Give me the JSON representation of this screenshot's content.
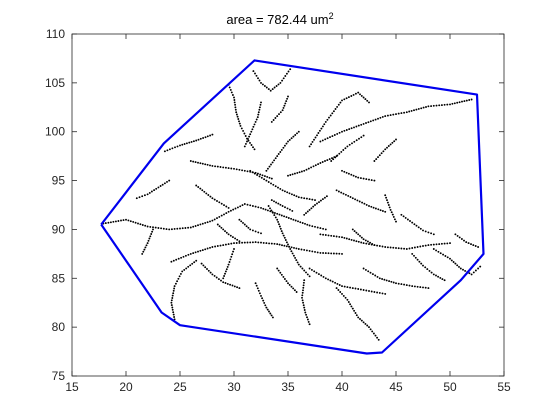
{
  "chart_data": {
    "type": "scatter",
    "title": "area = 782.44 um",
    "title_superscript": "2",
    "xlabel": "",
    "ylabel": "",
    "xlim": [
      15,
      55
    ],
    "ylim": [
      75,
      110
    ],
    "xticks": [
      15,
      20,
      25,
      30,
      35,
      40,
      45,
      50,
      55
    ],
    "yticks": [
      75,
      80,
      85,
      90,
      95,
      100,
      105,
      110
    ],
    "grid": false,
    "legend": "none",
    "colors": {
      "hull": "#0000ee",
      "points": "#000000",
      "axes": "#262626"
    },
    "series": [
      {
        "type": "line",
        "closed": true,
        "points": [
          [
            17.7,
            90.5
          ],
          [
            23.5,
            98.8
          ],
          [
            31.9,
            107.3
          ],
          [
            52.5,
            103.8
          ],
          [
            53.1,
            87.5
          ],
          [
            51.0,
            84.8
          ],
          [
            43.7,
            77.4
          ],
          [
            42.3,
            77.3
          ],
          [
            25.0,
            80.2
          ],
          [
            23.3,
            81.5
          ]
        ]
      },
      {
        "type": "scatter",
        "traces": [
          [
            [
              17.9,
              90.6
            ],
            [
              20.0,
              91.0
            ],
            [
              22.0,
              90.3
            ],
            [
              24.0,
              90.0
            ],
            [
              26.0,
              90.2
            ],
            [
              28.0,
              90.9
            ],
            [
              29.5,
              91.8
            ],
            [
              31.0,
              92.6
            ],
            [
              32.5,
              92.2
            ],
            [
              34.0,
              91.6
            ],
            [
              35.5,
              91.0
            ],
            [
              37.0,
              90.4
            ],
            [
              38.5,
              90.0
            ]
          ],
          [
            [
              33.2,
              92.4
            ],
            [
              34.0,
              91.0
            ],
            [
              34.5,
              89.6
            ],
            [
              35.2,
              88.0
            ],
            [
              36.0,
              86.4
            ],
            [
              37.0,
              85.2
            ]
          ],
          [
            [
              24.2,
              86.7
            ],
            [
              26.0,
              87.5
            ],
            [
              28.0,
              88.2
            ],
            [
              30.0,
              88.6
            ],
            [
              32.0,
              88.7
            ],
            [
              34.0,
              88.5
            ],
            [
              36.0,
              88.0
            ],
            [
              38.0,
              87.6
            ],
            [
              40.0,
              87.5
            ]
          ],
          [
            [
              24.5,
              80.8
            ],
            [
              24.2,
              82.5
            ],
            [
              24.5,
              84.2
            ],
            [
              25.2,
              85.7
            ],
            [
              26.5,
              86.8
            ]
          ],
          [
            [
              27.0,
              86.5
            ],
            [
              28.0,
              85.4
            ],
            [
              29.0,
              84.6
            ],
            [
              30.5,
              84.0
            ]
          ],
          [
            [
              22.5,
              90.0
            ],
            [
              22.0,
              88.6
            ],
            [
              21.5,
              87.5
            ]
          ],
          [
            [
              23.6,
              98.0
            ],
            [
              25.0,
              98.6
            ],
            [
              26.5,
              99.1
            ],
            [
              28.0,
              99.7
            ]
          ],
          [
            [
              26.0,
              97.0
            ],
            [
              28.0,
              96.5
            ],
            [
              30.0,
              96.2
            ],
            [
              32.0,
              95.8
            ],
            [
              33.5,
              95.2
            ]
          ],
          [
            [
              24.0,
              95.0
            ],
            [
              23.0,
              94.3
            ],
            [
              22.0,
              93.6
            ],
            [
              21.0,
              93.2
            ]
          ],
          [
            [
              26.5,
              94.5
            ],
            [
              28.0,
              93.2
            ],
            [
              29.5,
              92.2
            ]
          ],
          [
            [
              31.5,
              96.0
            ],
            [
              33.0,
              95.0
            ],
            [
              34.5,
              94.0
            ],
            [
              36.0,
              93.3
            ],
            [
              37.5,
              93.0
            ]
          ],
          [
            [
              29.5,
              104.8
            ],
            [
              30.0,
              103.5
            ],
            [
              30.2,
              102.0
            ],
            [
              30.6,
              100.6
            ],
            [
              31.2,
              99.3
            ],
            [
              31.9,
              98.2
            ]
          ],
          [
            [
              31.8,
              106.2
            ],
            [
              32.5,
              105.0
            ],
            [
              33.4,
              104.2
            ],
            [
              34.3,
              105.0
            ],
            [
              35.2,
              106.4
            ]
          ],
          [
            [
              32.5,
              103.0
            ],
            [
              32.2,
              101.5
            ],
            [
              31.6,
              100.0
            ],
            [
              31.0,
              98.5
            ]
          ],
          [
            [
              33.0,
              96.0
            ],
            [
              34.0,
              97.5
            ],
            [
              35.0,
              99.0
            ],
            [
              36.0,
              100.0
            ]
          ],
          [
            [
              35.0,
              95.5
            ],
            [
              36.5,
              96.0
            ],
            [
              38.0,
              96.8
            ],
            [
              39.5,
              97.5
            ]
          ],
          [
            [
              33.5,
              101.0
            ],
            [
              34.5,
              102.2
            ],
            [
              35.0,
              103.6
            ]
          ],
          [
            [
              38.0,
              99.0
            ],
            [
              40.0,
              100.0
            ],
            [
              42.0,
              100.8
            ],
            [
              44.0,
              101.6
            ],
            [
              46.0,
              102.0
            ],
            [
              48.0,
              102.6
            ],
            [
              50.0,
              102.8
            ],
            [
              52.0,
              103.3
            ]
          ],
          [
            [
              37.0,
              98.5
            ],
            [
              38.5,
              101.0
            ],
            [
              40.0,
              103.2
            ],
            [
              41.5,
              104.0
            ],
            [
              42.5,
              103.0
            ]
          ],
          [
            [
              39.0,
              97.0
            ],
            [
              40.5,
              98.5
            ],
            [
              42.0,
              99.6
            ]
          ],
          [
            [
              40.0,
              96.0
            ],
            [
              41.5,
              95.3
            ],
            [
              43.0,
              95.0
            ]
          ],
          [
            [
              39.5,
              94.0
            ],
            [
              41.0,
              93.2
            ],
            [
              42.5,
              92.4
            ],
            [
              44.0,
              91.8
            ]
          ],
          [
            [
              43.0,
              97.0
            ],
            [
              44.0,
              98.2
            ],
            [
              45.0,
              99.2
            ]
          ],
          [
            [
              38.0,
              89.5
            ],
            [
              40.0,
              89.2
            ],
            [
              42.0,
              88.6
            ],
            [
              44.0,
              88.2
            ],
            [
              46.0,
              88.0
            ],
            [
              48.0,
              88.4
            ],
            [
              50.0,
              88.6
            ]
          ],
          [
            [
              37.0,
              86.0
            ],
            [
              38.5,
              85.0
            ],
            [
              40.0,
              84.2
            ],
            [
              42.0,
              83.8
            ],
            [
              44.0,
              83.4
            ]
          ],
          [
            [
              36.5,
              84.8
            ],
            [
              36.3,
              83.0
            ],
            [
              36.6,
              81.5
            ],
            [
              37.0,
              80.3
            ]
          ],
          [
            [
              39.5,
              84.0
            ],
            [
              40.5,
              82.8
            ],
            [
              41.5,
              81.0
            ],
            [
              42.5,
              80.0
            ],
            [
              43.4,
              78.7
            ]
          ],
          [
            [
              42.0,
              86.0
            ],
            [
              43.5,
              85.0
            ],
            [
              45.0,
              84.5
            ],
            [
              46.5,
              84.2
            ],
            [
              48.0,
              84.0
            ]
          ],
          [
            [
              45.5,
              91.5
            ],
            [
              46.5,
              90.7
            ],
            [
              47.5,
              89.9
            ],
            [
              48.5,
              89.5
            ]
          ],
          [
            [
              48.5,
              88.0
            ],
            [
              50.0,
              87.0
            ],
            [
              51.0,
              86.0
            ],
            [
              52.0,
              85.4
            ],
            [
              52.8,
              86.2
            ]
          ],
          [
            [
              50.5,
              89.5
            ],
            [
              51.5,
              88.7
            ],
            [
              52.6,
              88.2
            ]
          ],
          [
            [
              46.5,
              87.5
            ],
            [
              47.5,
              86.3
            ],
            [
              48.5,
              85.4
            ],
            [
              49.5,
              84.8
            ]
          ],
          [
            [
              32.0,
              84.5
            ],
            [
              32.5,
              83.2
            ],
            [
              33.0,
              82.0
            ],
            [
              33.6,
              81.0
            ]
          ],
          [
            [
              30.0,
              88.0
            ],
            [
              29.5,
              86.4
            ],
            [
              29.0,
              85.0
            ]
          ],
          [
            [
              28.5,
              90.5
            ],
            [
              29.5,
              89.5
            ],
            [
              30.5,
              88.8
            ]
          ],
          [
            [
              34.0,
              86.0
            ],
            [
              35.0,
              84.5
            ],
            [
              35.8,
              83.6
            ]
          ],
          [
            [
              30.5,
              91.0
            ],
            [
              31.5,
              90.0
            ],
            [
              32.5,
              89.6
            ]
          ],
          [
            [
              33.5,
              93.0
            ],
            [
              34.5,
              92.4
            ],
            [
              35.4,
              91.9
            ]
          ],
          [
            [
              36.5,
              91.5
            ],
            [
              37.5,
              92.5
            ],
            [
              38.6,
              93.4
            ]
          ],
          [
            [
              41.0,
              90.0
            ],
            [
              42.0,
              89.0
            ],
            [
              43.0,
              88.4
            ]
          ],
          [
            [
              44.0,
              93.5
            ],
            [
              44.5,
              92.0
            ],
            [
              45.0,
              90.8
            ]
          ]
        ]
      }
    ]
  }
}
